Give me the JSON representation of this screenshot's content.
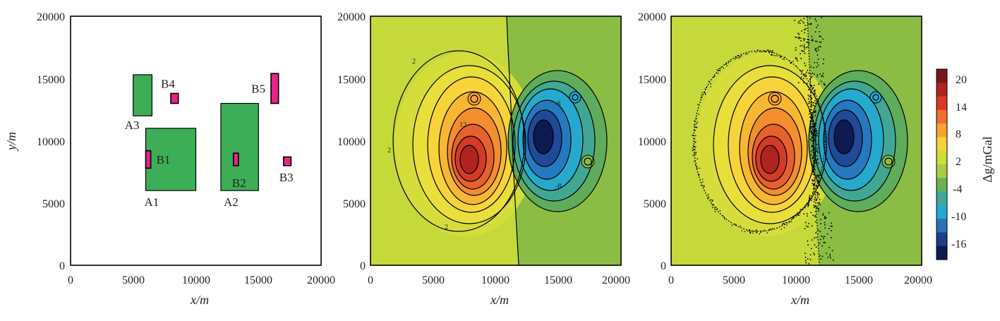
{
  "chart_data": [
    {
      "type": "diagram",
      "panel": "model",
      "xlabel": "x/m",
      "ylabel": "y/m",
      "xlim": [
        0,
        20000
      ],
      "ylim": [
        0,
        20000
      ],
      "xticks": [
        0,
        5000,
        10000,
        15000,
        20000
      ],
      "yticks": [
        0,
        5000,
        10000,
        15000,
        20000
      ],
      "bodies": [
        {
          "label": "A1",
          "kind": "large",
          "x0": 6000,
          "x1": 10000,
          "y0": 6000,
          "y1": 11000,
          "color": "#3dae57"
        },
        {
          "label": "A2",
          "kind": "large",
          "x0": 12000,
          "x1": 15000,
          "y0": 6000,
          "y1": 13000,
          "color": "#3dae57"
        },
        {
          "label": "A3",
          "kind": "large",
          "x0": 5000,
          "x1": 6500,
          "y0": 12000,
          "y1": 15300,
          "color": "#3dae57"
        },
        {
          "label": "B1",
          "kind": "small",
          "x0": 6000,
          "x1": 6400,
          "y0": 7800,
          "y1": 9200,
          "color": "#e8238a"
        },
        {
          "label": "B2",
          "kind": "small",
          "x0": 13000,
          "x1": 13400,
          "y0": 8000,
          "y1": 9000,
          "color": "#e8238a"
        },
        {
          "label": "B3",
          "kind": "small",
          "x0": 17000,
          "x1": 17600,
          "y0": 8000,
          "y1": 8700,
          "color": "#e8238a"
        },
        {
          "label": "B4",
          "kind": "small",
          "x0": 8000,
          "x1": 8600,
          "y0": 13000,
          "y1": 13800,
          "color": "#e8238a"
        },
        {
          "label": "B5",
          "kind": "small",
          "x0": 16000,
          "x1": 16600,
          "y0": 13000,
          "y1": 15400,
          "color": "#e8238a"
        }
      ]
    },
    {
      "type": "contour",
      "panel": "theoretical-anomaly",
      "xlabel": "x/m",
      "xlim": [
        0,
        20000
      ],
      "ylim": [
        0,
        20000
      ],
      "xticks": [
        0,
        5000,
        10000,
        15000,
        20000
      ],
      "yticks": [
        0,
        5000,
        10000,
        15000,
        20000
      ],
      "contour_labels": [
        "2",
        "2",
        "2",
        "12",
        "-8",
        "-8"
      ]
    },
    {
      "type": "contour",
      "panel": "noisy-anomaly",
      "xlabel": "x/m",
      "xlim": [
        0,
        20000
      ],
      "ylim": [
        0,
        20000
      ],
      "xticks": [
        0,
        5000,
        10000,
        15000,
        20000
      ],
      "yticks": [
        0,
        5000,
        10000,
        15000,
        20000
      ]
    }
  ],
  "colorbar": {
    "label": "Δg/mGal",
    "tick_labels": [
      "20",
      "14",
      "8",
      "2",
      "-4",
      "-10",
      "-16"
    ],
    "colors": [
      "#7a1518",
      "#b0221e",
      "#d9382b",
      "#ef6f2c",
      "#f7a42f",
      "#f5d23a",
      "#cfdc3a",
      "#a9cc44",
      "#6cb055",
      "#3fa89a",
      "#24a9d3",
      "#2a72b8",
      "#1a3e8c",
      "#0e1b52"
    ]
  }
}
